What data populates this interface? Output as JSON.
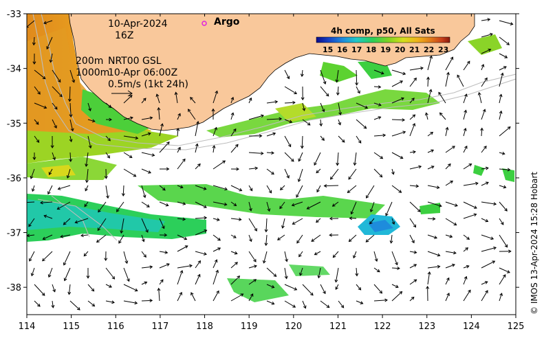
{
  "map": {
    "date_line1": "10-Apr-2024",
    "date_line2": "16Z",
    "argo_label": "Argo",
    "legend_title": "4h comp, p50, All Sats",
    "legend_ticks": [
      "15",
      "16",
      "17",
      "18",
      "19",
      "20",
      "21",
      "22",
      "23"
    ],
    "depth_label_200": "200m",
    "depth_label_1000": "1000m",
    "current_source": "NRT00 GSL",
    "current_time": "10-Apr 06:00Z",
    "vector_scale_label": "0.5m/s (1kt 24h)",
    "credit": "© IMOS 13-Apr-2024 15:28 Hobart",
    "x_ticks": [
      "114",
      "115",
      "116",
      "117",
      "118",
      "119",
      "120",
      "121",
      "122",
      "123",
      "124",
      "125"
    ],
    "y_ticks": [
      "-33",
      "-34",
      "-35",
      "-36",
      "-37",
      "-38"
    ],
    "x_range": [
      114,
      125
    ],
    "y_range": [
      -38.5,
      -33
    ],
    "colors": {
      "land": "#f9c89b",
      "argo_marker": "#e020e0",
      "colorbar": [
        "#0c0c8a",
        "#1646c8",
        "#1e8cdc",
        "#21c8c8",
        "#2ccf5a",
        "#7ed321",
        "#d4e01c",
        "#f0b21a",
        "#e0781a",
        "#c8401a",
        "#8a1a0c"
      ]
    }
  }
}
